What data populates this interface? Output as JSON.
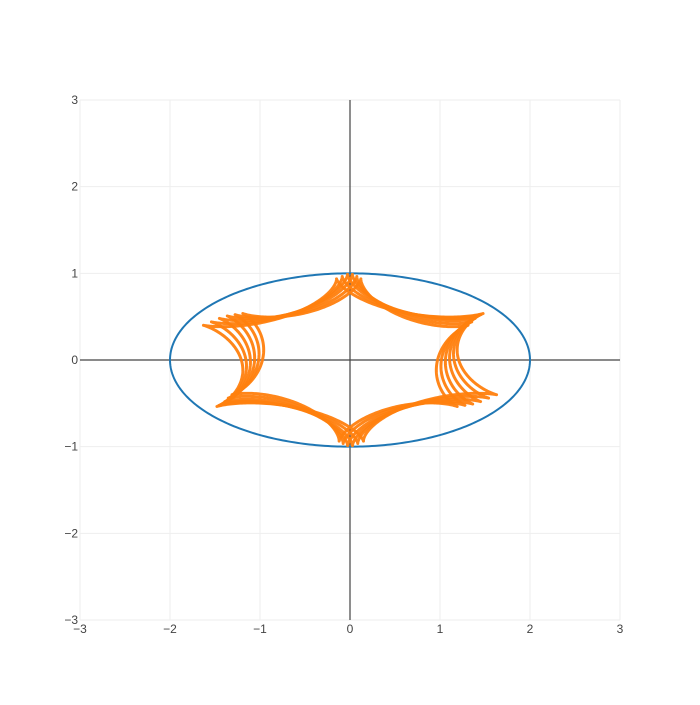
{
  "chart_data": {
    "type": "line",
    "title": "",
    "xlabel": "",
    "ylabel": "",
    "xlim": [
      -3,
      3
    ],
    "ylim": [
      -3,
      3
    ],
    "x_ticks": [
      -3,
      -2,
      -1,
      0,
      1,
      2,
      3
    ],
    "y_ticks": [
      -3,
      -2,
      -1,
      0,
      1,
      2,
      3
    ],
    "x_tick_labels": [
      "−3",
      "−2",
      "−1",
      "0",
      "1",
      "2",
      "3"
    ],
    "y_tick_labels": [
      "−3",
      "−2",
      "−1",
      "0",
      "1",
      "2",
      "3"
    ],
    "grid": true,
    "legend": false,
    "zero_lines": true,
    "series": [
      {
        "type": "ellipse",
        "center": [
          0,
          0
        ],
        "semi_axis_x": 2,
        "semi_axis_y": 1,
        "color": "#1f77b4",
        "line_width": 2
      },
      {
        "type": "hypocycloid_band",
        "cusps": 6,
        "scale_x": [
          1.45,
          1.8
        ],
        "scale_y": [
          0.88,
          1.0
        ],
        "traces": 6,
        "color": "#ff7f0e",
        "line_width": 3
      }
    ]
  },
  "colors": {
    "background": "#ffffff",
    "grid": "#eeeeee",
    "zero_line": "#444444",
    "tick_text": "#444444"
  }
}
